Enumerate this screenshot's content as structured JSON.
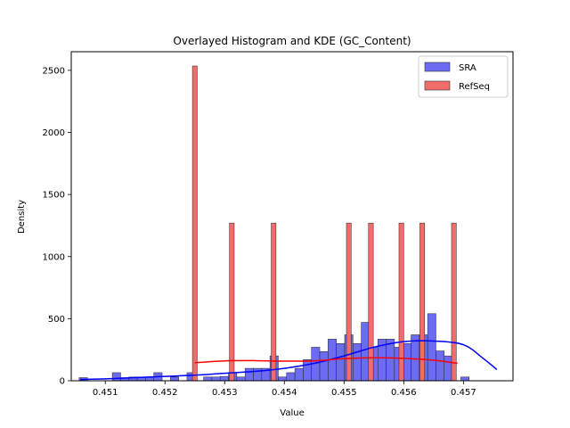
{
  "chart_data": {
    "type": "bar",
    "title": "Overlayed Histogram and KDE (GC_Content)",
    "xlabel": "Value",
    "ylabel": "Density",
    "xlim": [
      0.45043,
      0.45783
    ],
    "ylim": [
      0,
      2650
    ],
    "x_ticks": [
      0.451,
      0.452,
      0.453,
      0.454,
      0.455,
      0.456,
      0.457
    ],
    "x_tick_labels": [
      "0.451",
      "0.452",
      "0.453",
      "0.454",
      "0.455",
      "0.456",
      "0.457"
    ],
    "y_ticks": [
      0,
      500,
      1000,
      1500,
      2000,
      2500
    ],
    "y_tick_labels": [
      "0",
      "500",
      "1000",
      "1500",
      "2000",
      "2500"
    ],
    "legend_position": "top-right",
    "grid": false,
    "series": [
      {
        "name": "SRA",
        "color": "#0000ff",
        "fill": "#6c6cf2",
        "bin_width": 0.000139,
        "bins_start": 0.450562,
        "values": [
          25,
          0,
          0,
          0,
          65,
          25,
          30,
          30,
          30,
          65,
          0,
          30,
          0,
          65,
          0,
          30,
          30,
          35,
          65,
          30,
          100,
          100,
          100,
          200,
          30,
          65,
          100,
          170,
          270,
          235,
          335,
          300,
          370,
          300,
          470,
          270,
          335,
          335,
          270,
          300,
          370,
          370,
          540,
          240,
          200,
          0,
          30
        ],
        "kde": {
          "x": [
            0.45058,
            0.451,
            0.4515,
            0.452,
            0.4525,
            0.453,
            0.4535,
            0.454,
            0.4545,
            0.455,
            0.4555,
            0.456,
            0.4565,
            0.457,
            0.45733,
            0.45756
          ],
          "y": [
            10,
            15,
            25,
            35,
            45,
            60,
            75,
            100,
            140,
            200,
            270,
            315,
            320,
            290,
            180,
            90
          ]
        }
      },
      {
        "name": "RefSeq",
        "color": "#ff0000",
        "fill": "#f26c6c",
        "bin_width": 8e-05,
        "bins": [
          {
            "x": 0.45246,
            "value": 2535
          },
          {
            "x": 0.45308,
            "value": 1270
          },
          {
            "x": 0.45378,
            "value": 1270
          },
          {
            "x": 0.45504,
            "value": 1270
          },
          {
            "x": 0.45541,
            "value": 1270
          },
          {
            "x": 0.45592,
            "value": 1270
          },
          {
            "x": 0.45627,
            "value": 1270
          },
          {
            "x": 0.4568,
            "value": 1270
          }
        ],
        "kde": {
          "x": [
            0.4525,
            0.453,
            0.4535,
            0.454,
            0.4545,
            0.455,
            0.4555,
            0.456,
            0.4565,
            0.4569
          ],
          "y": [
            145,
            160,
            162,
            158,
            160,
            178,
            185,
            180,
            165,
            140
          ]
        }
      }
    ]
  }
}
